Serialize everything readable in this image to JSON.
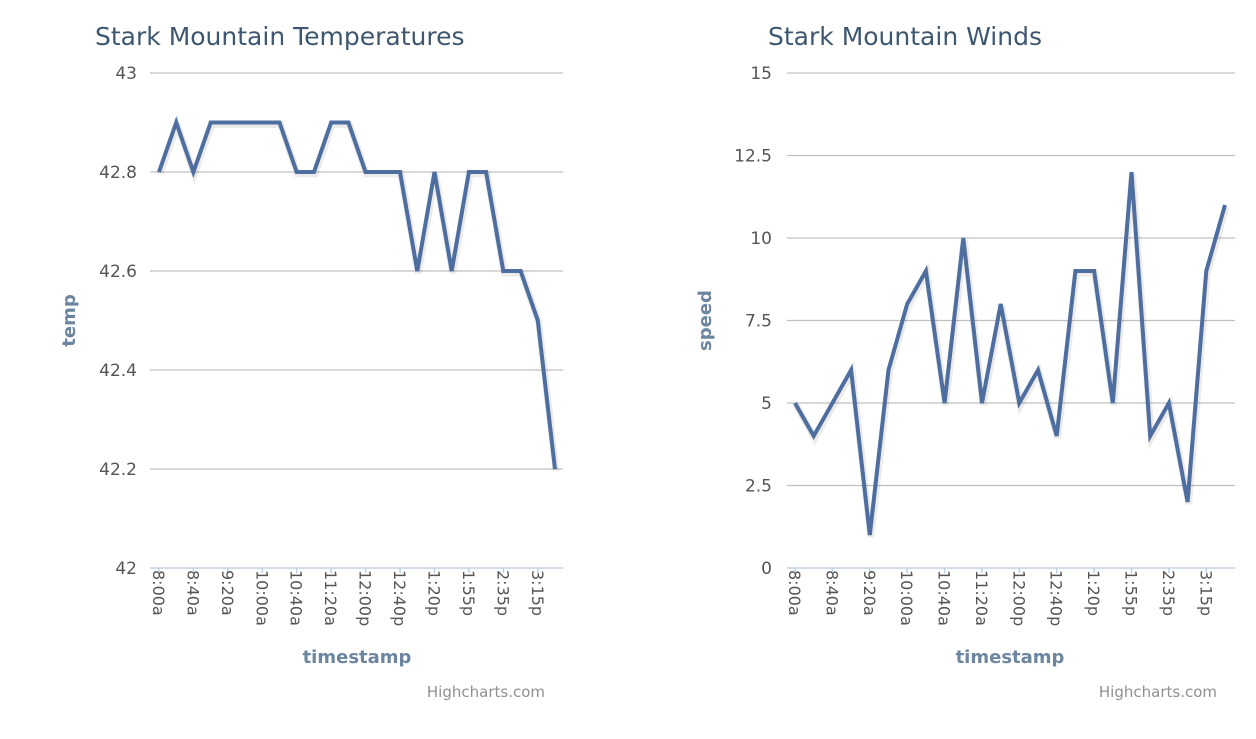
{
  "chart_data": [
    {
      "type": "line",
      "title": "Stark Mountain Temperatures",
      "xlabel": "timestamp",
      "ylabel": "temp",
      "ylim": [
        42,
        43
      ],
      "yticks": [
        "42",
        "42.2",
        "42.4",
        "42.6",
        "42.8",
        "43"
      ],
      "ytick_values": [
        42,
        42.2,
        42.4,
        42.6,
        42.8,
        43
      ],
      "xtick_labels": [
        "8:00a",
        "8:40a",
        "9:20a",
        "10:00a",
        "10:40a",
        "11:20a",
        "12:00p",
        "12:40p",
        "1:20p",
        "1:55p",
        "2:35p",
        "3:15p"
      ],
      "xtick_every": 2,
      "series": [
        {
          "name": "temp",
          "color": "#4e6e9f",
          "values": [
            42.8,
            42.9,
            42.8,
            42.9,
            42.9,
            42.9,
            42.9,
            42.9,
            42.8,
            42.8,
            42.9,
            42.9,
            42.8,
            42.8,
            42.8,
            42.6,
            42.8,
            42.6,
            42.8,
            42.8,
            42.6,
            42.6,
            42.5,
            42.2
          ]
        }
      ],
      "grid": true,
      "credit": "Highcharts.com"
    },
    {
      "type": "line",
      "title": "Stark Mountain Winds",
      "xlabel": "timestamp",
      "ylabel": "speed",
      "ylim": [
        0,
        15
      ],
      "yticks": [
        "0",
        "2.5",
        "5",
        "7.5",
        "10",
        "12.5",
        "15"
      ],
      "ytick_values": [
        0,
        2.5,
        5,
        7.5,
        10,
        12.5,
        15
      ],
      "xtick_labels": [
        "8:00a",
        "8:40a",
        "9:20a",
        "10:00a",
        "10:40a",
        "11:20a",
        "12:00p",
        "12:40p",
        "1:20p",
        "1:55p",
        "2:35p",
        "3:15p"
      ],
      "xtick_every": 2,
      "series": [
        {
          "name": "speed",
          "color": "#4e6e9f",
          "values": [
            5,
            4,
            5,
            6,
            1,
            6,
            8,
            9,
            5,
            10,
            5,
            8,
            5,
            6,
            4,
            9,
            9,
            5,
            12,
            4,
            5,
            2,
            9,
            11
          ]
        }
      ],
      "grid": true,
      "credit": "Highcharts.com"
    }
  ]
}
